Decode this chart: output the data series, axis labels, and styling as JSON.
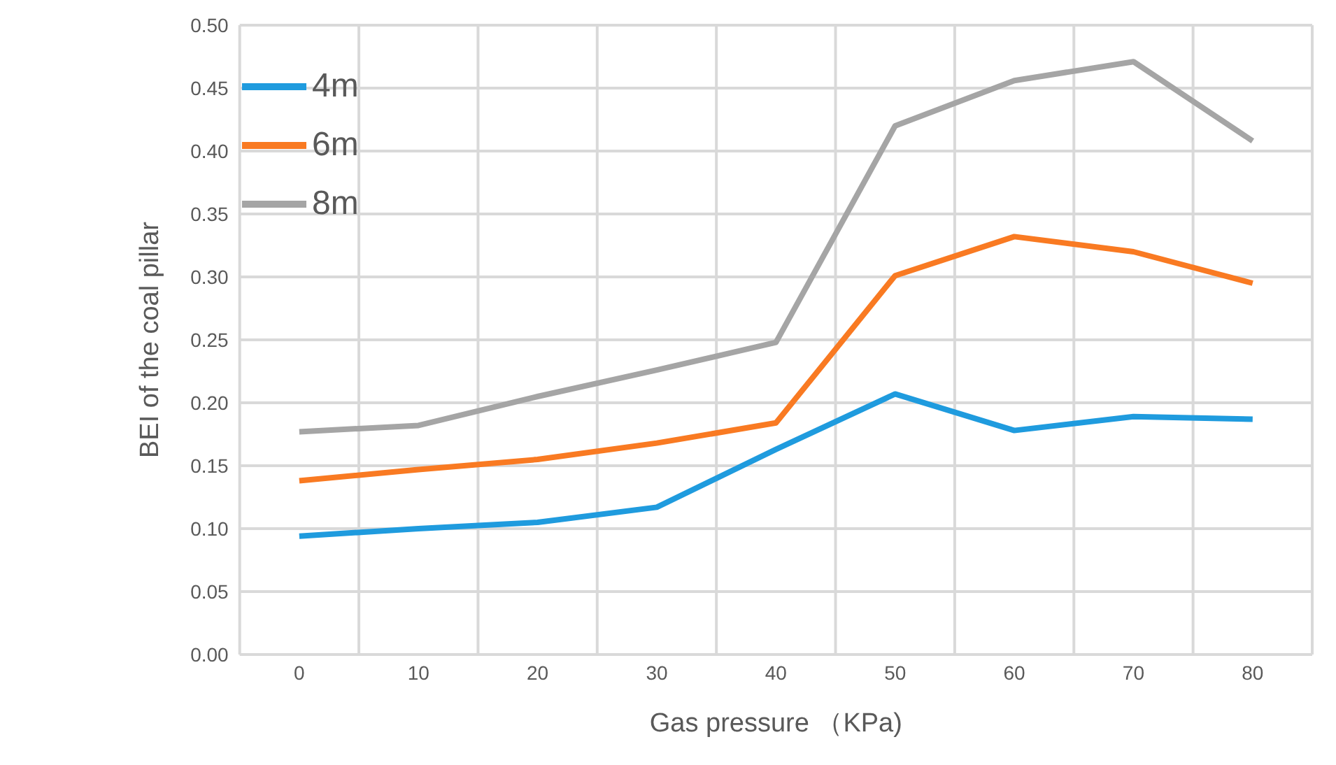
{
  "chart_data": {
    "type": "line",
    "xlabel": "Gas pressure （KPa)",
    "ylabel": "BEI of the coal pillar",
    "categories": [
      "0",
      "10",
      "20",
      "30",
      "40",
      "50",
      "60",
      "70",
      "80"
    ],
    "series": [
      {
        "name": "4m",
        "color": "#1f9bde",
        "values": [
          0.094,
          0.1,
          0.105,
          0.117,
          0.163,
          0.207,
          0.178,
          0.189,
          0.187
        ]
      },
      {
        "name": "6m",
        "color": "#f97a22",
        "values": [
          0.138,
          0.147,
          0.155,
          0.168,
          0.184,
          0.301,
          0.332,
          0.32,
          0.295
        ]
      },
      {
        "name": "8m",
        "color": "#a5a5a5",
        "values": [
          0.177,
          0.182,
          0.205,
          0.226,
          0.248,
          0.42,
          0.456,
          0.471,
          0.408
        ]
      }
    ],
    "ylim": [
      0,
      0.5
    ],
    "yticks": [
      {
        "value": 0,
        "label": "0.00"
      },
      {
        "value": 0.05,
        "label": "0.05"
      },
      {
        "value": 0.1,
        "label": "0.10"
      },
      {
        "value": 0.15,
        "label": "0.15"
      },
      {
        "value": 0.2,
        "label": "0.20"
      },
      {
        "value": 0.25,
        "label": "0.25"
      },
      {
        "value": 0.3,
        "label": "0.30"
      },
      {
        "value": 0.35,
        "label": "0.35"
      },
      {
        "value": 0.4,
        "label": "0.40"
      },
      {
        "value": 0.45,
        "label": "0.45"
      },
      {
        "value": 0.5,
        "label": "0.50"
      }
    ],
    "grid": true,
    "legend": "top left",
    "marker": "none",
    "line_style": "solid"
  }
}
